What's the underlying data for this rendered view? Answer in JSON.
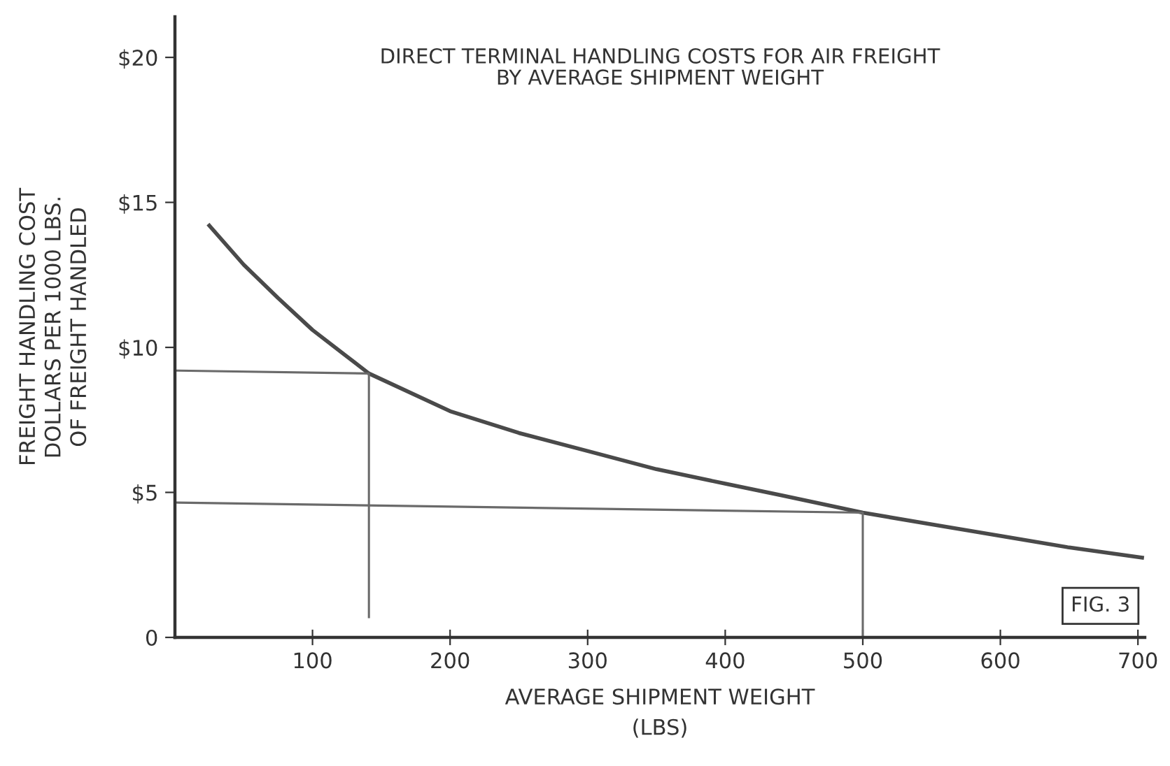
{
  "chart_data": {
    "type": "line",
    "title": "DIRECT TERMINAL HANDLING COSTS FOR AIR FREIGHT\nBY AVERAGE SHIPMENT WEIGHT",
    "xlabel": "AVERAGE SHIPMENT WEIGHT\n(LBS)",
    "ylabel": "FREIGHT HANDLING COST\nDOLLARS PER 1000 LBS.\nOF FREIGHT HANDLED",
    "series": [
      {
        "color": "#4a4a4a",
        "x": [
          25,
          50,
          75,
          100,
          141,
          200,
          250,
          302,
          350,
          400,
          441,
          500,
          550,
          600,
          650,
          703
        ],
        "values": [
          14.2,
          12.85,
          11.7,
          10.6,
          9.1,
          7.8,
          7.05,
          6.4,
          5.8,
          5.3,
          4.9,
          4.3,
          3.9,
          3.5,
          3.1,
          2.75
        ]
      },
      {
        "color": "#6a6a6a",
        "x": [
          0,
          141,
          141
        ],
        "values": [
          9.2,
          9.1,
          0.7
        ]
      },
      {
        "color": "#6a6a6a",
        "x": [
          0,
          500,
          500
        ],
        "values": [
          4.65,
          4.3,
          0
        ]
      }
    ],
    "xlim": [
      0,
      705
    ],
    "ylim": [
      0,
      21.4
    ],
    "xticks": [
      100,
      200,
      300,
      400,
      500,
      600,
      700
    ],
    "yticks": [
      {
        "value": 0,
        "label": "0"
      },
      {
        "value": 5,
        "label": "$5"
      },
      {
        "value": 10,
        "label": "$10"
      },
      {
        "value": 15,
        "label": "$15"
      },
      {
        "value": 20,
        "label": "$20"
      }
    ],
    "annotations": [
      "FIG. 3"
    ],
    "grid": false,
    "legend": false
  }
}
